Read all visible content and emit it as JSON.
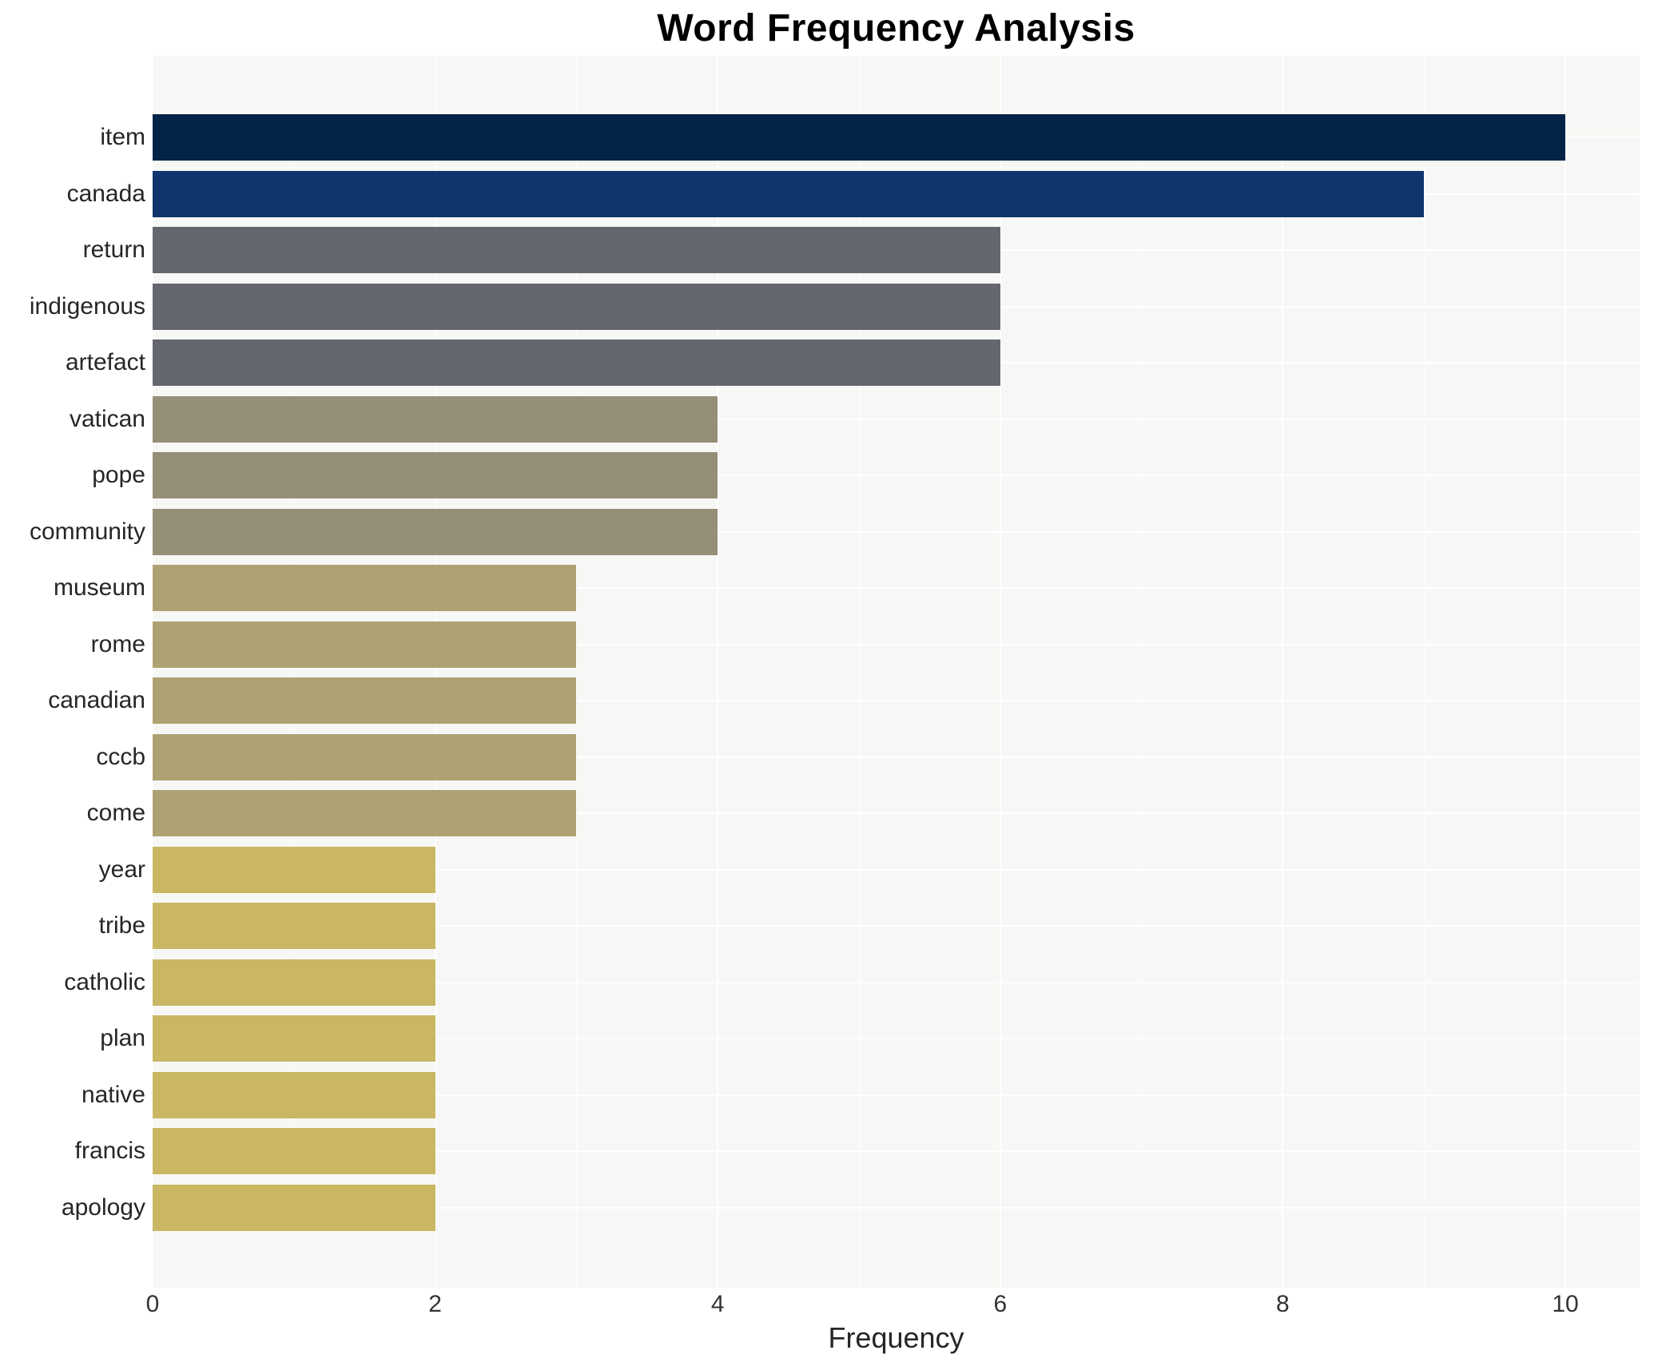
{
  "title": "Word Frequency Analysis",
  "chart_data": {
    "type": "bar",
    "orientation": "horizontal",
    "title": "Word Frequency Analysis",
    "xlabel": "Frequency",
    "ylabel": "",
    "categories": [
      "item",
      "canada",
      "return",
      "indigenous",
      "artefact",
      "vatican",
      "pope",
      "community",
      "museum",
      "rome",
      "canadian",
      "cccb",
      "come",
      "year",
      "tribe",
      "catholic",
      "plan",
      "native",
      "francis",
      "apology"
    ],
    "values": [
      10,
      9,
      6,
      6,
      6,
      4,
      4,
      4,
      3,
      3,
      3,
      3,
      3,
      2,
      2,
      2,
      2,
      2,
      2,
      2
    ],
    "bar_colors": [
      "#042349",
      "#0e356e",
      "#65676f",
      "#65676f",
      "#65676f",
      "#948f76",
      "#948f76",
      "#948f76",
      "#aea273",
      "#aea273",
      "#aea273",
      "#aea273",
      "#aea273",
      "#c9b763",
      "#c9b763",
      "#c9b763",
      "#c9b763",
      "#c9b763",
      "#c9b763",
      "#c9b763"
    ],
    "xlim": [
      0,
      10.53
    ],
    "xticks": [
      0,
      2,
      4,
      6,
      8,
      10
    ],
    "xtick_labels": [
      "0",
      "2",
      "4",
      "6",
      "8",
      "10"
    ],
    "minor_xticks": [
      1,
      3,
      5,
      7,
      9
    ],
    "legend_position": "none",
    "grid": "on",
    "panel_bg": "#f7f7f5",
    "grid_color": "#ffffff",
    "text_color": "#262626"
  }
}
